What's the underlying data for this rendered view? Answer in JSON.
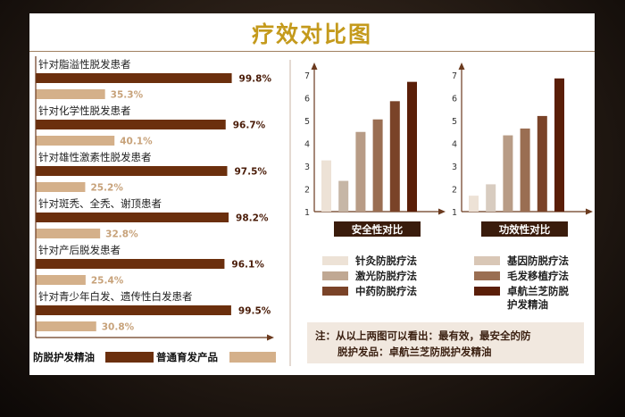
{
  "page": {
    "title": "疗效对比图",
    "footnote_line1": "注：从以上两图可以看出：最有效，最安全的防",
    "footnote_line2": "脱护发品：卓航兰芝防脱护发精油"
  },
  "colors": {
    "dark_brown": "#6b2f0d",
    "tan": "#d4b08a",
    "title_gold": "#c49a1c",
    "axis": "#6b3a1e",
    "caption_bg": "#3a1c0c",
    "footnote_bg": "#f1e8df"
  },
  "chart_data": [
    {
      "type": "bar",
      "orientation": "horizontal",
      "categories": [
        "针对脂溢性脱发患者",
        "针对化学性脱发患者",
        "针对雄性激素性脱发患者",
        "针对斑秃、全秃、谢顶患者",
        "针对产后脱发患者",
        "针对青少年白发、遗传性白发患者"
      ],
      "series": [
        {
          "name": "防脱护发精油",
          "color": "#6b2f0d",
          "values": [
            99.8,
            96.7,
            97.5,
            98.2,
            96.1,
            99.5
          ],
          "labels": [
            "99.8%",
            "96.7%",
            "97.5%",
            "98.2%",
            "96.1%",
            "99.5%"
          ]
        },
        {
          "name": "普通育发产品",
          "color": "#d4b08a",
          "values": [
            35.3,
            40.1,
            25.2,
            32.8,
            25.4,
            30.8
          ],
          "labels": [
            "35.3%",
            "40.1%",
            "25.2%",
            "32.8%",
            "25.4%",
            "30.8%"
          ]
        }
      ],
      "xlim": [
        0,
        100
      ],
      "legend_position": "bottom"
    },
    {
      "type": "bar",
      "title": "安全性对比",
      "y_ticks": [
        "1",
        "2",
        "3",
        "4",
        "5",
        "6",
        "7"
      ],
      "ylim": [
        1,
        7.6
      ],
      "values": [
        3.25,
        2.35,
        4.5,
        5.05,
        5.85,
        6.7
      ],
      "colors": [
        "#ede2d6",
        "#c6b6a6",
        "#b89c86",
        "#9a6e52",
        "#7a4328",
        "#5a1e08"
      ]
    },
    {
      "type": "bar",
      "title": "功效性对比",
      "y_ticks": [
        "1",
        "2",
        "3",
        "4",
        "5",
        "6",
        "7"
      ],
      "ylim": [
        1,
        7.6
      ],
      "values": [
        1.7,
        2.2,
        4.35,
        4.65,
        5.2,
        6.85
      ],
      "colors": [
        "#ede2d6",
        "#d8ccc0",
        "#b89c86",
        "#9a6e52",
        "#7a4328",
        "#5a1e08"
      ]
    }
  ],
  "method_legend": [
    {
      "label": "针灸防脱疗法",
      "color": "#ede2d6"
    },
    {
      "label": "基因防脱疗法",
      "color": "#d9c7b6"
    },
    {
      "label": "激光防脱疗法",
      "color": "#c0a893"
    },
    {
      "label": "毛发移植疗法",
      "color": "#9a6e52"
    },
    {
      "label": "中药防脱疗法",
      "color": "#7a4328"
    },
    {
      "label": "卓航兰芝防脱",
      "label2": "护发精油",
      "color": "#5a1e08"
    }
  ]
}
